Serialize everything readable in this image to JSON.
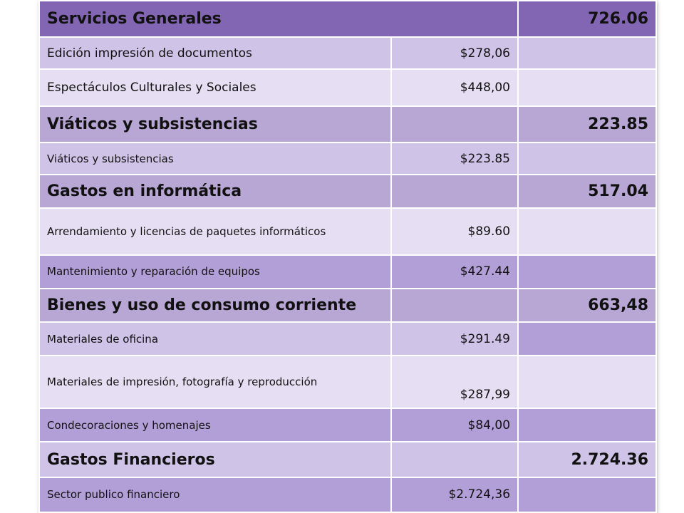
{
  "rows": [
    {
      "kind": "header",
      "label": "Servicios Generales",
      "amount": "",
      "total": "726.06"
    },
    {
      "kind": "item",
      "label": "Edición impresión de documentos",
      "amount": "$278,06",
      "total": ""
    },
    {
      "kind": "item",
      "label": "Espectáculos Culturales y Sociales",
      "amount": "$448,00",
      "total": ""
    },
    {
      "kind": "header",
      "label": "Viáticos y subsistencias",
      "amount": "",
      "total": "223.85"
    },
    {
      "kind": "item",
      "label": "Viáticos y subsistencias",
      "amount": "$223.85",
      "total": ""
    },
    {
      "kind": "header",
      "label": "Gastos en informática",
      "amount": "",
      "total": "517.04"
    },
    {
      "kind": "item",
      "label": "Arrendamiento y licencias de paquetes informáticos",
      "amount": "$89.60",
      "total": ""
    },
    {
      "kind": "item",
      "label": "Mantenimiento y reparación de equipos",
      "amount": "$427.44",
      "total": ""
    },
    {
      "kind": "header",
      "label": "Bienes y uso de consumo corriente",
      "amount": "",
      "total": "663,48"
    },
    {
      "kind": "item",
      "label": "Materiales de oficina",
      "amount": "$291.49",
      "total": ""
    },
    {
      "kind": "item",
      "label": "Materiales de impresión, fotografía y reproducción",
      "amount": "$287,99",
      "total": ""
    },
    {
      "kind": "item",
      "label": "Condecoraciones y homenajes",
      "amount": "$84,00",
      "total": ""
    },
    {
      "kind": "header",
      "label": "Gastos Financieros",
      "amount": "",
      "total": "2.724.36"
    },
    {
      "kind": "item",
      "label": "Sector publico financiero",
      "amount": "$2.724,36",
      "total": ""
    }
  ],
  "colors": {
    "header_first": "#8366b3",
    "header": "#b8a6d4",
    "row_light": "#e6dff3",
    "row_mid": "#cfc3e7",
    "row_dark": "#b39fd8"
  }
}
